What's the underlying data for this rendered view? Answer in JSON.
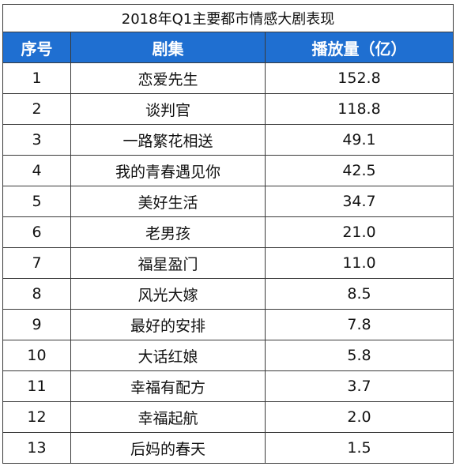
{
  "title": "2018年Q1主要都市情感大剧表现",
  "headers": [
    "序号",
    "剧集",
    "播放量（亿）"
  ],
  "rows": [
    [
      "1",
      "恋爱先生",
      "152.8"
    ],
    [
      "2",
      "谈判官",
      "118.8"
    ],
    [
      "3",
      "一路繁花相送",
      "49.1"
    ],
    [
      "4",
      "我的青春遇见你",
      "42.5"
    ],
    [
      "5",
      "美好生活",
      "34.7"
    ],
    [
      "6",
      "老男孩",
      "21.0"
    ],
    [
      "7",
      "福星盈门",
      "11.0"
    ],
    [
      "8",
      "风光大嫁",
      "8.5"
    ],
    [
      "9",
      "最好的安排",
      "7.8"
    ],
    [
      "10",
      "大话红娘",
      "5.8"
    ],
    [
      "11",
      "幸福有配方",
      "3.7"
    ],
    [
      "12",
      "幸福起航",
      "2.0"
    ],
    [
      "13",
      "后妈的春天",
      "1.5"
    ]
  ],
  "colors": {
    "header_bg": "#1f6fd1",
    "header_text": "#ffffff",
    "border": "#3a3a3a"
  }
}
